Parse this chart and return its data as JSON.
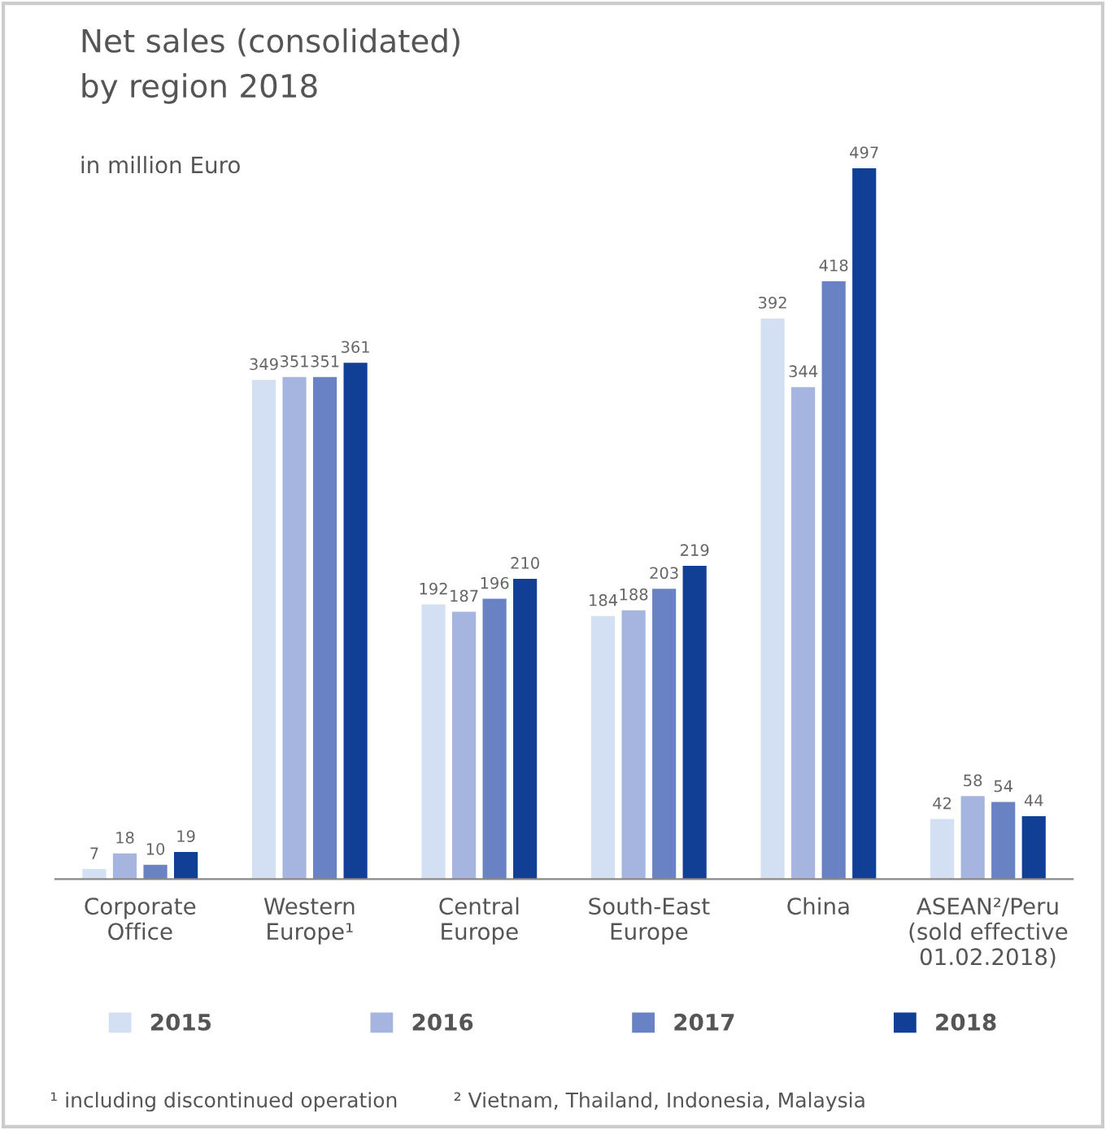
{
  "chart_data": {
    "type": "bar",
    "title": "Net sales (consolidated)\nby region 2018",
    "subtitle": "in million Euro",
    "categories": [
      "Corporate\nOffice",
      "Western\nEurope¹",
      "Central\nEurope",
      "South-East\nEurope",
      "China",
      "ASEAN²/Peru\n(sold effective\n01.02.2018)"
    ],
    "series": [
      {
        "name": "2015",
        "color": "#d3dff2",
        "values": [
          7,
          349,
          192,
          184,
          392,
          42
        ]
      },
      {
        "name": "2016",
        "color": "#a6b5df",
        "values": [
          18,
          351,
          187,
          188,
          344,
          58
        ]
      },
      {
        "name": "2017",
        "color": "#6882c4",
        "values": [
          10,
          351,
          196,
          203,
          418,
          54
        ]
      },
      {
        "name": "2018",
        "color": "#123f96",
        "values": [
          19,
          361,
          210,
          219,
          497,
          44
        ]
      }
    ],
    "data_labels": true,
    "legend": "bottom",
    "grid": false,
    "annotations": [
      "¹ including discontinued operation",
      "² Vietnam, Thailand, Indonesia, Malaysia"
    ]
  }
}
